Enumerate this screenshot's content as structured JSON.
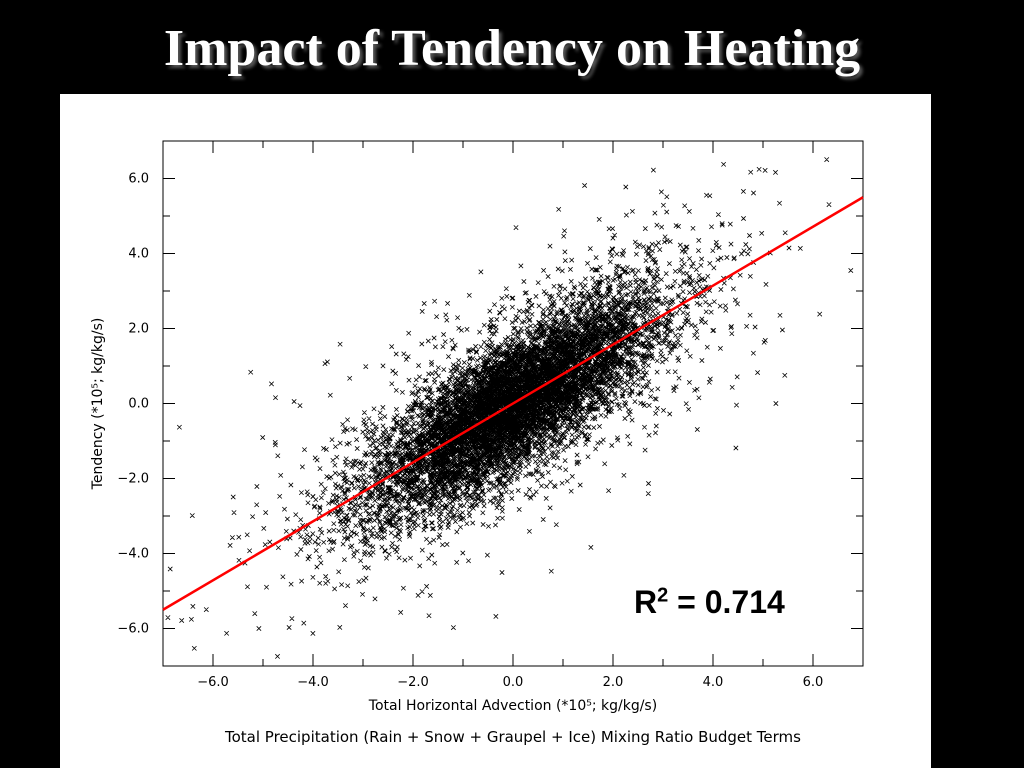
{
  "slide": {
    "title": "Impact of Tendency on Heating"
  },
  "annotation": {
    "r2_symbol": "R",
    "r2_exponent": "2",
    "r2_text": " = 0.714",
    "r2_value": 0.714
  },
  "chart_data": {
    "type": "scatter",
    "title": "Total Precipitation (Rain + Snow + Graupel + Ice) Mixing Ratio Budget Terms",
    "xlabel": "Total Horizontal Advection (*10⁵; kg/kg/s)",
    "ylabel": "Tendency (*10⁵; kg/kg/s)",
    "xlim": [
      -7.0,
      7.0
    ],
    "ylim": [
      -7.0,
      7.0
    ],
    "x_ticks": [
      "−6.0",
      "−4.0",
      "−2.0",
      "0.0",
      "2.0",
      "4.0",
      "6.0"
    ],
    "y_ticks": [
      "−6.0",
      "−4.0",
      "−2.0",
      "0.0",
      "2.0",
      "4.0",
      "6.0"
    ],
    "grid": false,
    "marker": "x",
    "marker_color": "#000000",
    "approx_points_shown": 20000,
    "distribution_note": "dense elongated cloud along y ≈ 0.8x, centered near (0, 0)",
    "fit_line": {
      "color": "#ff0000",
      "x": [
        -7.0,
        7.0
      ],
      "y": [
        -5.5,
        5.5
      ]
    },
    "r_squared": 0.714
  }
}
